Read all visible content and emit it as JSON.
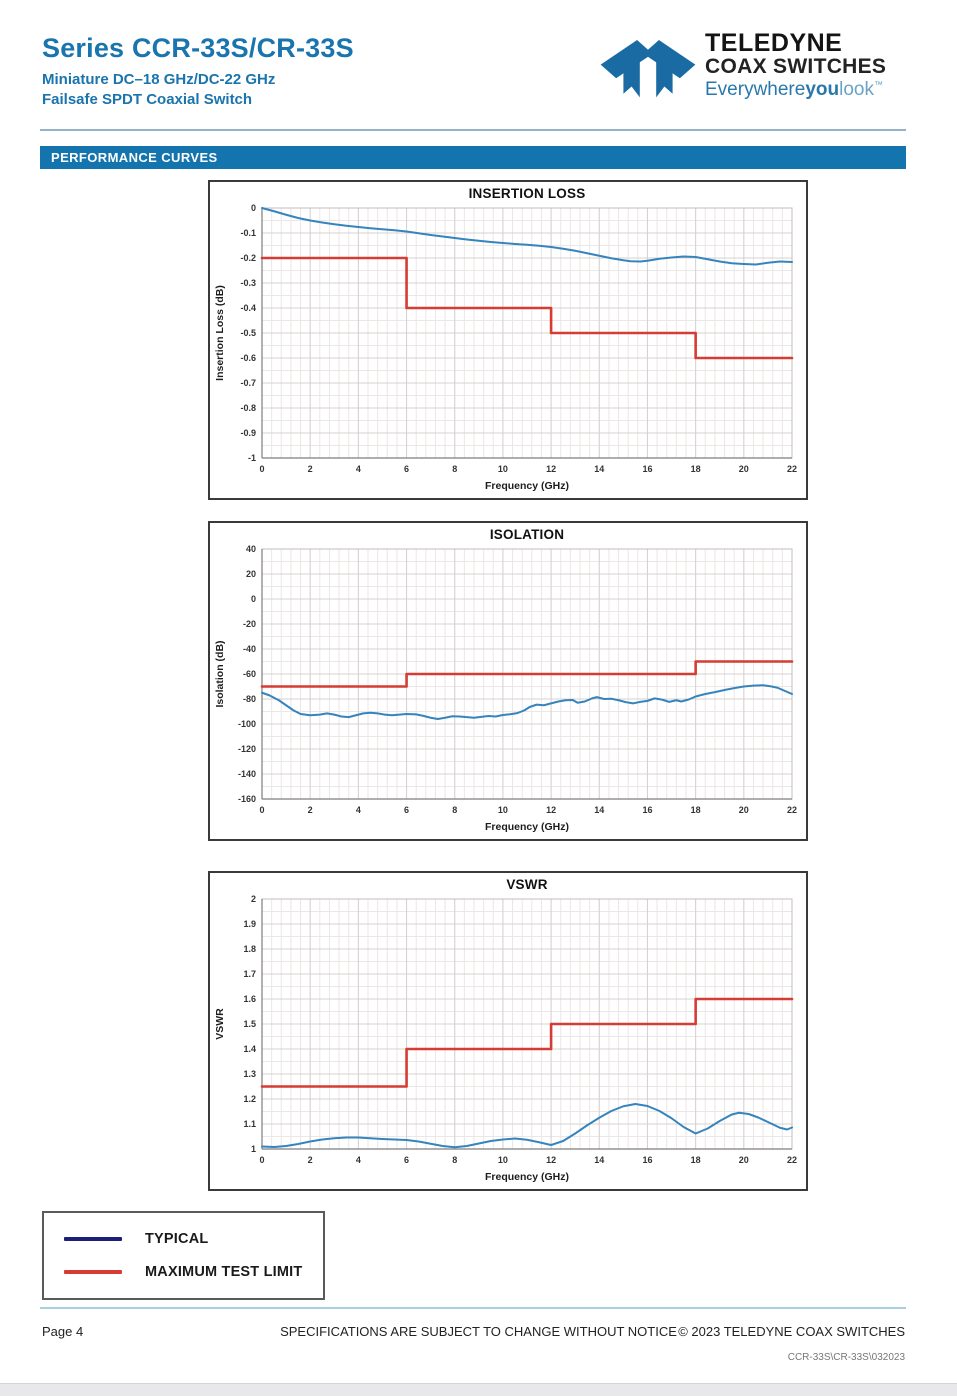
{
  "header": {
    "title": "Series CCR-33S/CR-33S",
    "subtitle1": "Miniature DC–18 GHz/DC-22 GHz",
    "subtitle2": "Failsafe SPDT Coaxial Switch",
    "logo": {
      "line1": "TELEDYNE",
      "line2": "COAX SWITCHES",
      "tagline_pre": "Everywhere",
      "tagline_bold": "you",
      "tagline_post": "look",
      "tm": "™"
    }
  },
  "section_banner": "PERFORMANCE CURVES",
  "colors": {
    "brand_blue": "#1a74ae",
    "banner_blue": "#1474ae",
    "typical_line": "#3584bd",
    "limit_line": "#d63b34",
    "legend_typical": "#1b1f77",
    "grid_minor": "#ece6e6",
    "grid_major": "#d8d0d0",
    "plot_border": "#c4bcbc",
    "axis": "#7d7d7d"
  },
  "legend": {
    "items": [
      {
        "label": "TYPICAL",
        "color": "#1b1f77"
      },
      {
        "label": "MAXIMUM TEST LIMIT",
        "color": "#d63b34"
      }
    ]
  },
  "footer": {
    "page": "Page 4",
    "center": "SPECIFICATIONS ARE SUBJECT TO CHANGE WITHOUT NOTICE",
    "right": "© 2023 TELEDYNE COAX SWITCHES",
    "doc_code": "CCR-33S\\CR-33S\\032023"
  },
  "chart_data": [
    {
      "type": "line",
      "title": "INSERTION LOSS",
      "xlabel": "Frequency (GHz)",
      "ylabel": "Insertion Loss (dB)",
      "xlim": [
        0,
        22
      ],
      "ylim": [
        -1,
        0
      ],
      "x_ticks": [
        0,
        2,
        4,
        6,
        8,
        10,
        12,
        14,
        16,
        18,
        20,
        22
      ],
      "y_ticks": [
        0,
        -0.1,
        -0.2,
        -0.3,
        -0.4,
        -0.5,
        -0.6,
        -0.7,
        -0.8,
        -0.9,
        -1
      ],
      "x_minor_step": 0.4,
      "y_minor_step": 0.05,
      "grid": true,
      "legend_position": "none",
      "series": [
        {
          "name": "TYPICAL",
          "color": "#3584bd",
          "width": 2,
          "points": [
            [
              0,
              0
            ],
            [
              0.5,
              -0.013
            ],
            [
              1,
              -0.027
            ],
            [
              1.5,
              -0.04
            ],
            [
              2,
              -0.05
            ],
            [
              2.5,
              -0.058
            ],
            [
              3,
              -0.065
            ],
            [
              3.5,
              -0.071
            ],
            [
              4,
              -0.076
            ],
            [
              4.5,
              -0.081
            ],
            [
              5,
              -0.085
            ],
            [
              5.5,
              -0.089
            ],
            [
              6,
              -0.094
            ],
            [
              6.5,
              -0.101
            ],
            [
              7,
              -0.108
            ],
            [
              7.5,
              -0.114
            ],
            [
              8,
              -0.12
            ],
            [
              8.5,
              -0.126
            ],
            [
              9,
              -0.131
            ],
            [
              9.5,
              -0.136
            ],
            [
              10,
              -0.14
            ],
            [
              10.5,
              -0.144
            ],
            [
              11,
              -0.147
            ],
            [
              11.5,
              -0.151
            ],
            [
              12,
              -0.156
            ],
            [
              12.5,
              -0.163
            ],
            [
              13,
              -0.171
            ],
            [
              13.5,
              -0.181
            ],
            [
              14,
              -0.191
            ],
            [
              14.5,
              -0.201
            ],
            [
              15,
              -0.209
            ],
            [
              15.3,
              -0.213
            ],
            [
              15.7,
              -0.214
            ],
            [
              16,
              -0.211
            ],
            [
              16.5,
              -0.203
            ],
            [
              17,
              -0.198
            ],
            [
              17.5,
              -0.194
            ],
            [
              18,
              -0.196
            ],
            [
              18.5,
              -0.205
            ],
            [
              19,
              -0.214
            ],
            [
              19.5,
              -0.221
            ],
            [
              20,
              -0.224
            ],
            [
              20.5,
              -0.226
            ],
            [
              21,
              -0.219
            ],
            [
              21.5,
              -0.214
            ],
            [
              22,
              -0.216
            ]
          ]
        },
        {
          "name": "MAXIMUM TEST LIMIT",
          "color": "#d63b34",
          "width": 2.6,
          "points": [
            [
              0,
              -0.2
            ],
            [
              6,
              -0.2
            ],
            [
              6,
              -0.4
            ],
            [
              12,
              -0.4
            ],
            [
              12,
              -0.5
            ],
            [
              18,
              -0.5
            ],
            [
              18,
              -0.6
            ],
            [
              22,
              -0.6
            ]
          ]
        }
      ]
    },
    {
      "type": "line",
      "title": "ISOLATION",
      "xlabel": "Frequency (GHz)",
      "ylabel": "Isolation (dB)",
      "xlim": [
        0,
        22
      ],
      "ylim": [
        -160,
        40
      ],
      "x_ticks": [
        0,
        2,
        4,
        6,
        8,
        10,
        12,
        14,
        16,
        18,
        20,
        22
      ],
      "y_ticks": [
        40,
        20,
        0,
        -20,
        -40,
        -60,
        -80,
        -100,
        -120,
        -140,
        -160
      ],
      "x_minor_step": 0.4,
      "y_minor_step": 10,
      "grid": true,
      "legend_position": "none",
      "series": [
        {
          "name": "TYPICAL",
          "color": "#3584bd",
          "width": 2,
          "points": [
            [
              0,
              -75
            ],
            [
              0.3,
              -77
            ],
            [
              0.7,
              -81
            ],
            [
              1,
              -85
            ],
            [
              1.3,
              -89
            ],
            [
              1.6,
              -92
            ],
            [
              2,
              -93
            ],
            [
              2.4,
              -92.5
            ],
            [
              2.7,
              -91.5
            ],
            [
              3,
              -92.5
            ],
            [
              3.3,
              -94
            ],
            [
              3.6,
              -94.5
            ],
            [
              3.9,
              -93
            ],
            [
              4.2,
              -91.5
            ],
            [
              4.5,
              -91
            ],
            [
              4.8,
              -91.5
            ],
            [
              5.1,
              -92.5
            ],
            [
              5.4,
              -93
            ],
            [
              5.7,
              -92.5
            ],
            [
              6,
              -92
            ],
            [
              6.4,
              -92.3
            ],
            [
              6.7,
              -93.5
            ],
            [
              7,
              -95
            ],
            [
              7.3,
              -96
            ],
            [
              7.6,
              -95
            ],
            [
              7.9,
              -93.8
            ],
            [
              8.2,
              -94
            ],
            [
              8.5,
              -94.5
            ],
            [
              8.8,
              -95
            ],
            [
              9.1,
              -94.3
            ],
            [
              9.4,
              -93.6
            ],
            [
              9.7,
              -94
            ],
            [
              10,
              -92.8
            ],
            [
              10.3,
              -92.2
            ],
            [
              10.6,
              -91.3
            ],
            [
              10.9,
              -89
            ],
            [
              11.1,
              -86.5
            ],
            [
              11.4,
              -84.5
            ],
            [
              11.7,
              -85
            ],
            [
              12,
              -83.5
            ],
            [
              12.3,
              -82
            ],
            [
              12.6,
              -81
            ],
            [
              12.9,
              -80.8
            ],
            [
              13.1,
              -83
            ],
            [
              13.4,
              -82
            ],
            [
              13.7,
              -79.5
            ],
            [
              13.9,
              -78.5
            ],
            [
              14.2,
              -80
            ],
            [
              14.5,
              -79.8
            ],
            [
              14.8,
              -81
            ],
            [
              15.1,
              -82.5
            ],
            [
              15.4,
              -83.5
            ],
            [
              15.7,
              -82.3
            ],
            [
              16,
              -81.5
            ],
            [
              16.3,
              -79.5
            ],
            [
              16.6,
              -80.5
            ],
            [
              16.9,
              -82.3
            ],
            [
              17.2,
              -81
            ],
            [
              17.4,
              -82
            ],
            [
              17.7,
              -80.5
            ],
            [
              18,
              -78
            ],
            [
              18.4,
              -76
            ],
            [
              18.8,
              -74.5
            ],
            [
              19.2,
              -72.8
            ],
            [
              19.6,
              -71.3
            ],
            [
              20,
              -70
            ],
            [
              20.4,
              -69.3
            ],
            [
              20.8,
              -69
            ],
            [
              21.1,
              -69.8
            ],
            [
              21.4,
              -71
            ],
            [
              21.7,
              -73.5
            ],
            [
              22,
              -76
            ]
          ]
        },
        {
          "name": "MAXIMUM TEST LIMIT",
          "color": "#d63b34",
          "width": 2.6,
          "points": [
            [
              0,
              -70
            ],
            [
              6,
              -70
            ],
            [
              6,
              -60
            ],
            [
              18,
              -60
            ],
            [
              18,
              -50
            ],
            [
              22,
              -50
            ]
          ]
        }
      ]
    },
    {
      "type": "line",
      "title": "VSWR",
      "xlabel": "Frequency (GHz)",
      "ylabel": "VSWR",
      "xlim": [
        0,
        22
      ],
      "ylim": [
        1,
        2
      ],
      "x_ticks": [
        0,
        2,
        4,
        6,
        8,
        10,
        12,
        14,
        16,
        18,
        20,
        22
      ],
      "y_ticks": [
        2,
        1.9,
        1.8,
        1.7,
        1.6,
        1.5,
        1.4,
        1.3,
        1.2,
        1.1,
        1
      ],
      "x_minor_step": 0.4,
      "y_minor_step": 0.05,
      "grid": true,
      "legend_position": "none",
      "series": [
        {
          "name": "TYPICAL",
          "color": "#3584bd",
          "width": 2,
          "points": [
            [
              0,
              1.01
            ],
            [
              0.5,
              1.008
            ],
            [
              1,
              1.012
            ],
            [
              1.5,
              1.02
            ],
            [
              2,
              1.03
            ],
            [
              2.5,
              1.038
            ],
            [
              3,
              1.043
            ],
            [
              3.5,
              1.046
            ],
            [
              4,
              1.046
            ],
            [
              4.5,
              1.043
            ],
            [
              5,
              1.04
            ],
            [
              5.5,
              1.038
            ],
            [
              6,
              1.036
            ],
            [
              6.5,
              1.03
            ],
            [
              7,
              1.021
            ],
            [
              7.5,
              1.012
            ],
            [
              8,
              1.007
            ],
            [
              8.5,
              1.012
            ],
            [
              9,
              1.022
            ],
            [
              9.5,
              1.032
            ],
            [
              10,
              1.038
            ],
            [
              10.5,
              1.042
            ],
            [
              11,
              1.037
            ],
            [
              11.5,
              1.027
            ],
            [
              12,
              1.016
            ],
            [
              12.5,
              1.032
            ],
            [
              13,
              1.062
            ],
            [
              13.5,
              1.095
            ],
            [
              14,
              1.125
            ],
            [
              14.5,
              1.152
            ],
            [
              15,
              1.171
            ],
            [
              15.5,
              1.18
            ],
            [
              16,
              1.172
            ],
            [
              16.5,
              1.152
            ],
            [
              17,
              1.123
            ],
            [
              17.5,
              1.088
            ],
            [
              18,
              1.062
            ],
            [
              18.5,
              1.082
            ],
            [
              19,
              1.112
            ],
            [
              19.5,
              1.138
            ],
            [
              19.8,
              1.145
            ],
            [
              20.2,
              1.14
            ],
            [
              20.6,
              1.126
            ],
            [
              21,
              1.108
            ],
            [
              21.5,
              1.085
            ],
            [
              21.8,
              1.078
            ],
            [
              22,
              1.086
            ]
          ]
        },
        {
          "name": "MAXIMUM TEST LIMIT",
          "color": "#d63b34",
          "width": 2.6,
          "points": [
            [
              0,
              1.25
            ],
            [
              6,
              1.25
            ],
            [
              6,
              1.4
            ],
            [
              12,
              1.4
            ],
            [
              12,
              1.5
            ],
            [
              18,
              1.5
            ],
            [
              18,
              1.6
            ],
            [
              22,
              1.6
            ]
          ]
        }
      ]
    }
  ]
}
